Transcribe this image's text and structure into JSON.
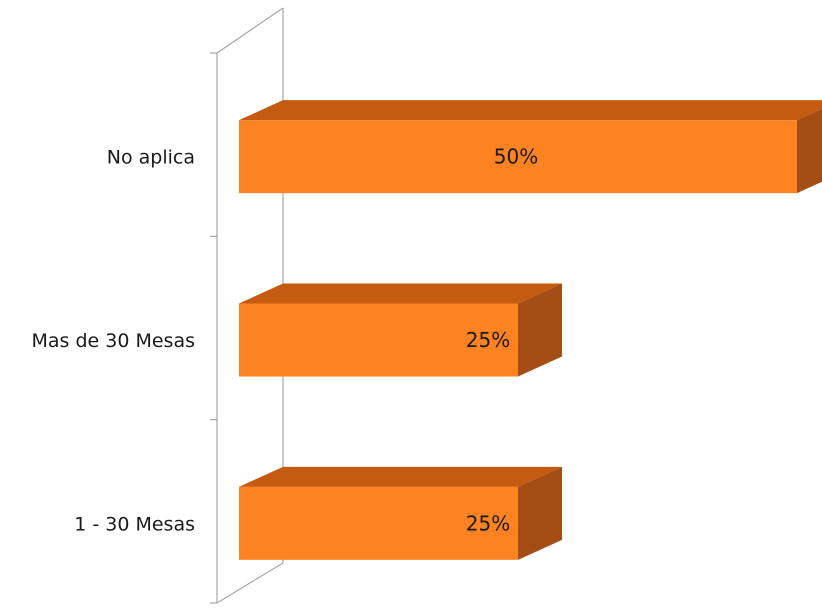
{
  "chart_data": {
    "type": "bar",
    "orientation": "horizontal",
    "style": "3d",
    "categories": [
      "No aplica",
      "Mas de 30 Mesas",
      "1 - 30 Mesas"
    ],
    "values": [
      50,
      25,
      25
    ],
    "data_labels": [
      "50%",
      "25%",
      "25%"
    ],
    "xlim": [
      0,
      50
    ],
    "title": "",
    "xlabel": "",
    "ylabel": "",
    "grid": false,
    "legend": "none",
    "colors": {
      "bar_front": "#fd8221",
      "bar_top": "#c55a11",
      "bar_side": "#a44e16",
      "axis_wall": "#a6a6a6"
    }
  }
}
